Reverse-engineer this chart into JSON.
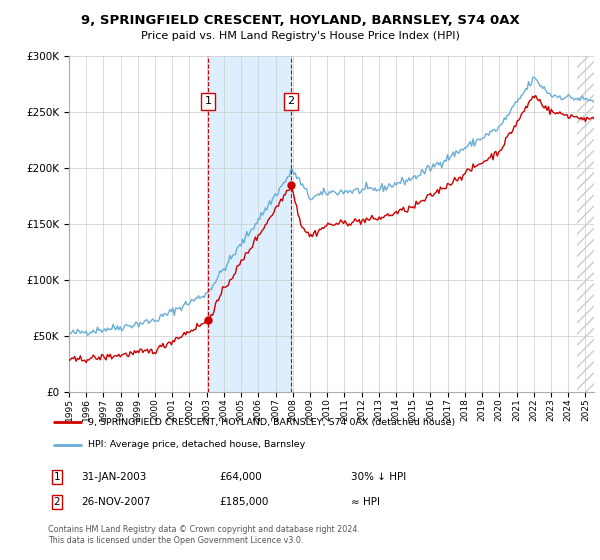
{
  "title": "9, SPRINGFIELD CRESCENT, HOYLAND, BARNSLEY, S74 0AX",
  "subtitle": "Price paid vs. HM Land Registry's House Price Index (HPI)",
  "legend_line1": "9, SPRINGFIELD CRESCENT, HOYLAND, BARNSLEY, S74 0AX (detached house)",
  "legend_line2": "HPI: Average price, detached house, Barnsley",
  "annotation1_label": "1",
  "annotation1_date": "31-JAN-2003",
  "annotation1_price": "£64,000",
  "annotation1_hpi": "30% ↓ HPI",
  "annotation2_label": "2",
  "annotation2_date": "26-NOV-2007",
  "annotation2_price": "£185,000",
  "annotation2_hpi": "≈ HPI",
  "footer": "Contains HM Land Registry data © Crown copyright and database right 2024.\nThis data is licensed under the Open Government Licence v3.0.",
  "transaction1_year": 2003.08,
  "transaction2_year": 2007.9,
  "transaction1_price": 64000,
  "transaction2_price": 185000,
  "hpi_color": "#6aaed6",
  "price_color": "#cc0000",
  "shade_color": "#ddeeff",
  "dashed_color": "#cc0000",
  "ylim_min": 0,
  "ylim_max": 300000,
  "xlim_min": 1995,
  "xlim_max": 2025.5,
  "background_color": "#ffffff",
  "hatch_start": 2024.5
}
